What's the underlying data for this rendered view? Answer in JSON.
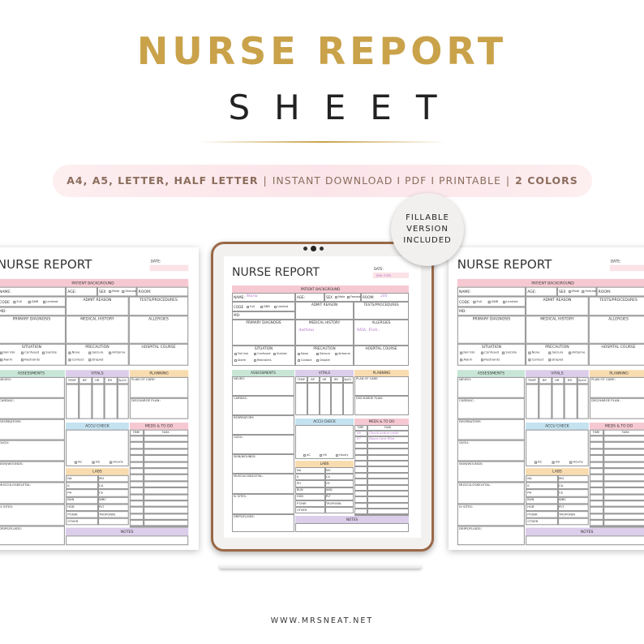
{
  "header": {
    "title": "NURSE REPORT",
    "subtitle": "SHEET"
  },
  "banner": {
    "formats": "A4, A5, LETTER, HALF LETTER",
    "separator": "|",
    "features": "INSTANT DOWNLOAD I PDF I PRINTABLE",
    "colors": "2 COLORS"
  },
  "badge": {
    "lines": [
      "FILLABLE",
      "VERSION",
      "INCLUDED"
    ]
  },
  "sheet": {
    "title": "NURSE REPORT",
    "date": "DATE:",
    "patient_background": "PATIENT BACKGROUND",
    "name": "NAME:",
    "age": "AGE:",
    "sex": "SEX",
    "male": "Male",
    "female": "Female",
    "room": "ROOM:",
    "code": "CODE",
    "code_options": [
      "Full",
      "DNR",
      "Limited"
    ],
    "admit_reason": "ADMIT REASON",
    "tests": "TESTS/PROCEDURES",
    "md": "MD:",
    "primary_diagnosis": "PRIMARY DIAGNOSIS",
    "medical_history": "MEDICAL HISTORY",
    "allergies": "ALLERGIES",
    "situation": "SITUATION",
    "situation_options": [
      "Fall risk",
      "Confused",
      "Suicide",
      "Alarm",
      "Restraints"
    ],
    "precaution": "PRECAUTION",
    "precaution_options": [
      "None",
      "Seizure",
      "Airborne",
      "Contact",
      "Droplet"
    ],
    "hospital_course": "HOSPITAL COURSE",
    "assessments": "ASSESSMENTS",
    "assessment_items": [
      "NEURO:",
      "CARDIAC:",
      "RESPIRATORY:",
      "GI/GU:",
      "SKIN/WOUNDS:",
      "MUSCULOSKELETAL:",
      "IV SITES:",
      "DRIPS/FLUIDS:"
    ],
    "vitals": "VITALS",
    "vital_columns": [
      "TEMP",
      "BP",
      "HR",
      "RR",
      "SpO2"
    ],
    "planning": "PLANNING",
    "plan_of_care": "PLAN OF CARE:",
    "discharge_plan": "DISCHARGE PLAN:",
    "accu_check": "ACCU CHECK",
    "accu_options": [
      "AC",
      "HS",
      "Hourly"
    ],
    "meds_todo": "MEDS & TO DO",
    "meds_columns": [
      "TIME",
      "TASK"
    ],
    "labs": "LABS",
    "lab_rows": [
      [
        "NA",
        "MG"
      ],
      [
        "K",
        "CA"
      ],
      [
        "PH",
        "CE"
      ],
      [
        "BUN",
        "WBC"
      ],
      [
        "HGB",
        "PLT"
      ],
      [
        "PT/INR",
        "TROPONIN"
      ],
      [
        "OTHER"
      ]
    ],
    "notes": "NOTES"
  },
  "filled": {
    "name": "Maria",
    "date": "Feb 15th",
    "room": "205",
    "medical_history": "Asthma",
    "allergies": "Milk, Fish..",
    "tasks": [
      {
        "time": "08",
        "task": "Check action order"
      },
      {
        "time": "07",
        "task": "Room Care Plan"
      }
    ]
  },
  "footer": {
    "url": "WWW.MRSNEAT.NET"
  }
}
